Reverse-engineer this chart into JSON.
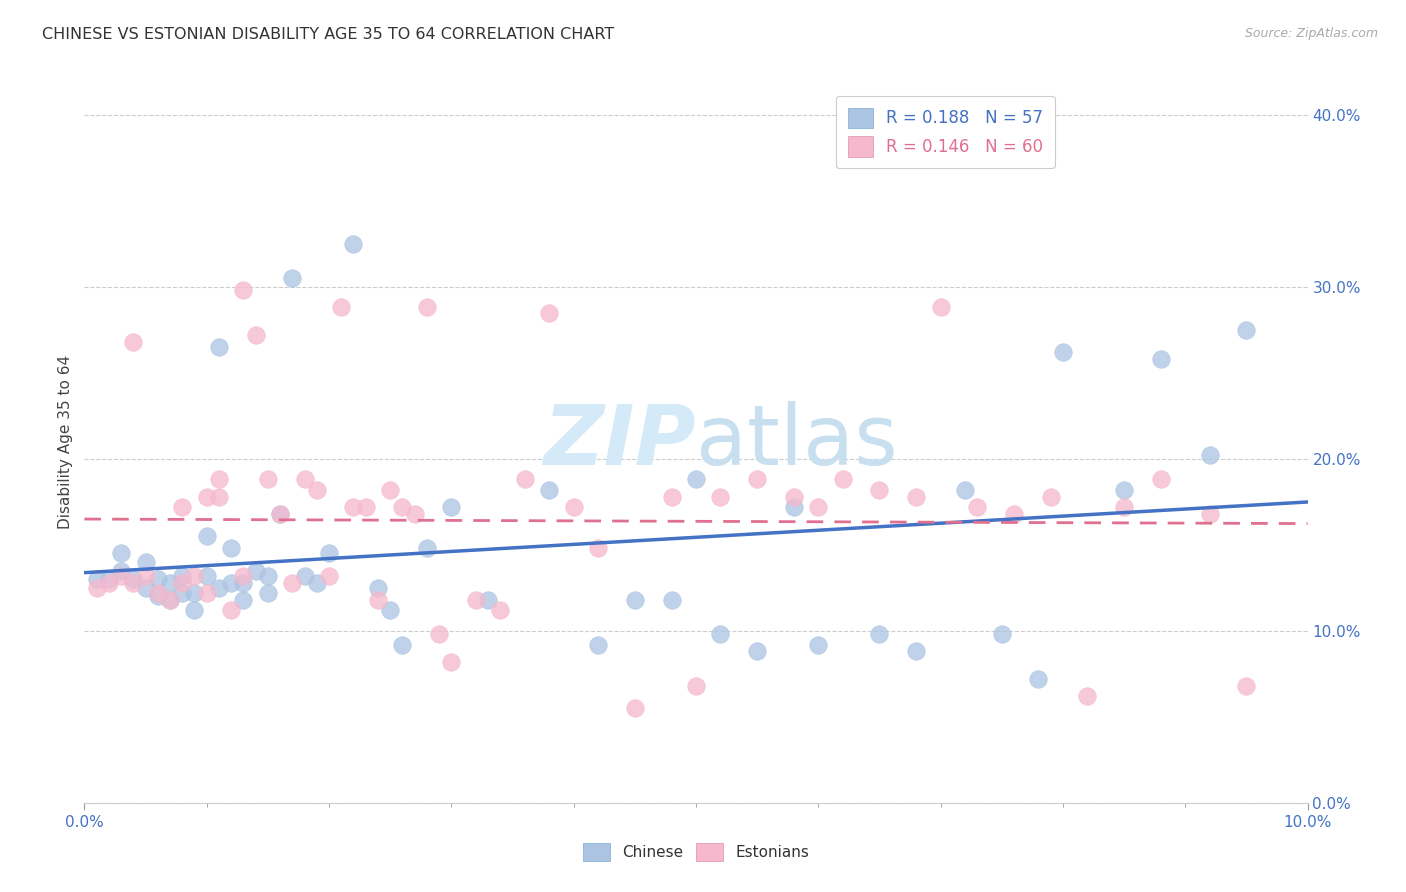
{
  "title": "CHINESE VS ESTONIAN DISABILITY AGE 35 TO 64 CORRELATION CHART",
  "source": "Source: ZipAtlas.com",
  "ylabel": "Disability Age 35 to 64",
  "xlim": [
    0.0,
    0.1
  ],
  "ylim": [
    0.0,
    0.42
  ],
  "chinese_color": "#aac4e2",
  "estonian_color": "#f5b8cc",
  "chinese_line_color": "#4472c4",
  "estonian_line_color": "#e07090",
  "R_chinese": 0.188,
  "N_chinese": 57,
  "R_estonian": 0.146,
  "N_estonian": 60,
  "chinese_x": [
    0.001,
    0.002,
    0.003,
    0.003,
    0.004,
    0.005,
    0.005,
    0.006,
    0.006,
    0.007,
    0.007,
    0.008,
    0.008,
    0.009,
    0.009,
    0.01,
    0.01,
    0.011,
    0.011,
    0.012,
    0.012,
    0.013,
    0.013,
    0.014,
    0.015,
    0.015,
    0.016,
    0.017,
    0.018,
    0.019,
    0.02,
    0.022,
    0.024,
    0.025,
    0.026,
    0.028,
    0.03,
    0.033,
    0.038,
    0.042,
    0.045,
    0.048,
    0.05,
    0.052,
    0.055,
    0.058,
    0.06,
    0.065,
    0.068,
    0.072,
    0.075,
    0.078,
    0.08,
    0.085,
    0.088,
    0.092,
    0.095
  ],
  "chinese_y": [
    0.13,
    0.13,
    0.135,
    0.145,
    0.13,
    0.125,
    0.14,
    0.12,
    0.13,
    0.118,
    0.128,
    0.122,
    0.132,
    0.112,
    0.122,
    0.132,
    0.155,
    0.125,
    0.265,
    0.128,
    0.148,
    0.118,
    0.128,
    0.135,
    0.122,
    0.132,
    0.168,
    0.305,
    0.132,
    0.128,
    0.145,
    0.325,
    0.125,
    0.112,
    0.092,
    0.148,
    0.172,
    0.118,
    0.182,
    0.092,
    0.118,
    0.118,
    0.188,
    0.098,
    0.088,
    0.172,
    0.092,
    0.098,
    0.088,
    0.182,
    0.098,
    0.072,
    0.262,
    0.182,
    0.258,
    0.202,
    0.275
  ],
  "estonian_x": [
    0.001,
    0.002,
    0.003,
    0.004,
    0.004,
    0.005,
    0.006,
    0.007,
    0.008,
    0.008,
    0.009,
    0.01,
    0.01,
    0.011,
    0.011,
    0.012,
    0.013,
    0.013,
    0.014,
    0.015,
    0.016,
    0.017,
    0.018,
    0.019,
    0.02,
    0.021,
    0.022,
    0.023,
    0.024,
    0.025,
    0.026,
    0.027,
    0.028,
    0.029,
    0.03,
    0.032,
    0.034,
    0.036,
    0.038,
    0.04,
    0.042,
    0.045,
    0.048,
    0.05,
    0.052,
    0.055,
    0.058,
    0.06,
    0.062,
    0.065,
    0.068,
    0.07,
    0.073,
    0.076,
    0.079,
    0.082,
    0.085,
    0.088,
    0.092,
    0.095
  ],
  "estonian_y": [
    0.125,
    0.128,
    0.132,
    0.128,
    0.268,
    0.132,
    0.122,
    0.118,
    0.128,
    0.172,
    0.132,
    0.122,
    0.178,
    0.188,
    0.178,
    0.112,
    0.132,
    0.298,
    0.272,
    0.188,
    0.168,
    0.128,
    0.188,
    0.182,
    0.132,
    0.288,
    0.172,
    0.172,
    0.118,
    0.182,
    0.172,
    0.168,
    0.288,
    0.098,
    0.082,
    0.118,
    0.112,
    0.188,
    0.285,
    0.172,
    0.148,
    0.055,
    0.178,
    0.068,
    0.178,
    0.188,
    0.178,
    0.172,
    0.188,
    0.182,
    0.178,
    0.288,
    0.172,
    0.168,
    0.178,
    0.062,
    0.172,
    0.188,
    0.168,
    0.068
  ],
  "grid_color": "#cccccc",
  "background_color": "#ffffff",
  "watermark_color": "#d5eaf8",
  "legend_border_color": "#cccccc",
  "tick_color": "#4472c4"
}
